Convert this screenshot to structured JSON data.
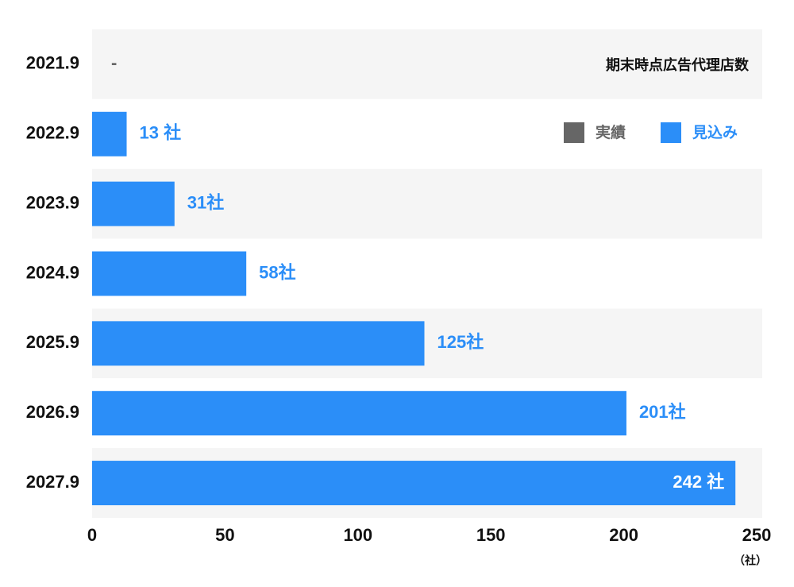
{
  "chart_data": {
    "type": "hbar",
    "title": "期末時点広告代理店数",
    "unit_label": "（社）",
    "categories": [
      "2021.9",
      "2022.9",
      "2023.9",
      "2024.9",
      "2025.9",
      "2026.9",
      "2027.9"
    ],
    "series": [
      {
        "name": "実績",
        "color": "#666666",
        "values": [
          null,
          null,
          null,
          null,
          null,
          null,
          null
        ],
        "value_labels": [
          "-",
          null,
          null,
          null,
          null,
          null,
          null
        ]
      },
      {
        "name": "見込み",
        "color": "#2b8ef8",
        "values": [
          null,
          13,
          31,
          58,
          125,
          201,
          242
        ],
        "value_labels": [
          null,
          "13 社",
          "31社",
          "58社",
          "125社",
          "201社",
          "242 社"
        ]
      }
    ],
    "xlim": [
      0,
      250
    ],
    "xticks": [
      0,
      50,
      100,
      150,
      200,
      250
    ],
    "row_colors": [
      "#f5f5f5",
      "#ffffff"
    ]
  }
}
